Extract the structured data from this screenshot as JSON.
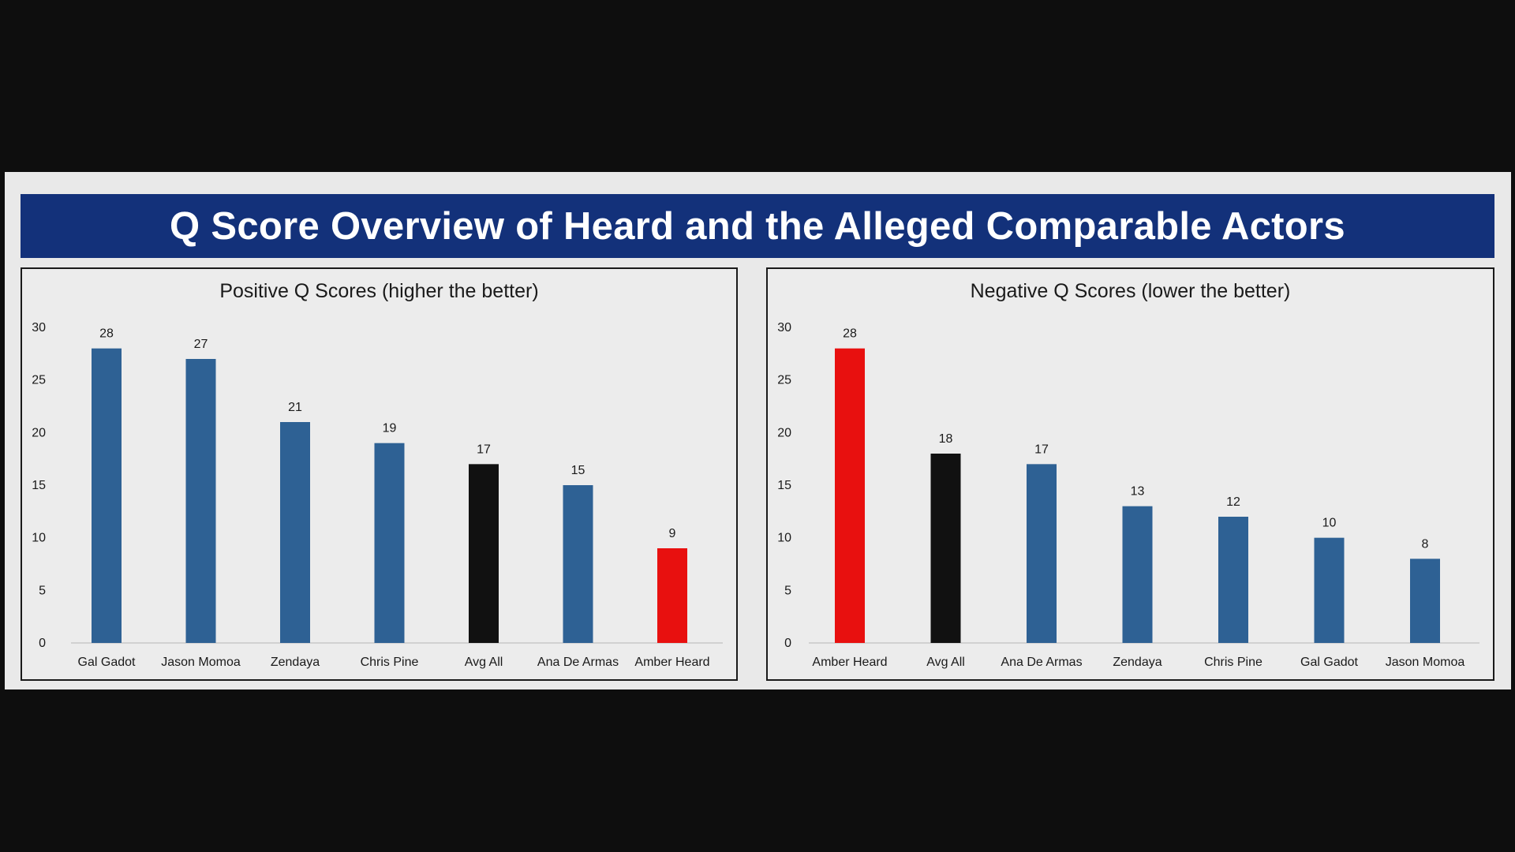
{
  "title": "Q Score Overview of Heard and the Alleged Comparable Actors",
  "colors": {
    "banner": "#13317a",
    "bar": "#2e6194",
    "avg": "#111111",
    "highlight": "#e8100f"
  },
  "chart_data": [
    {
      "type": "bar",
      "title": "Positive Q Scores (higher the better)",
      "categories": [
        "Gal Gadot",
        "Jason Momoa",
        "Zendaya",
        "Chris Pine",
        "Avg All",
        "Ana De Armas",
        "Amber Heard"
      ],
      "values": [
        28,
        27,
        21,
        19,
        17,
        15,
        9
      ],
      "bar_colors": [
        "#2e6194",
        "#2e6194",
        "#2e6194",
        "#2e6194",
        "#111111",
        "#2e6194",
        "#e8100f"
      ],
      "yticks": [
        0,
        5,
        10,
        15,
        20,
        25,
        30
      ],
      "ylim": [
        0,
        30
      ],
      "grid": false,
      "data_labels": true
    },
    {
      "type": "bar",
      "title": "Negative Q Scores (lower the better)",
      "categories": [
        "Amber Heard",
        "Avg All",
        "Ana De Armas",
        "Zendaya",
        "Chris Pine",
        "Gal Gadot",
        "Jason Momoa"
      ],
      "values": [
        28,
        18,
        17,
        13,
        12,
        10,
        8
      ],
      "bar_colors": [
        "#e8100f",
        "#111111",
        "#2e6194",
        "#2e6194",
        "#2e6194",
        "#2e6194",
        "#2e6194"
      ],
      "yticks": [
        0,
        5,
        10,
        15,
        20,
        25,
        30
      ],
      "ylim": [
        0,
        30
      ],
      "grid": false,
      "data_labels": true
    }
  ]
}
